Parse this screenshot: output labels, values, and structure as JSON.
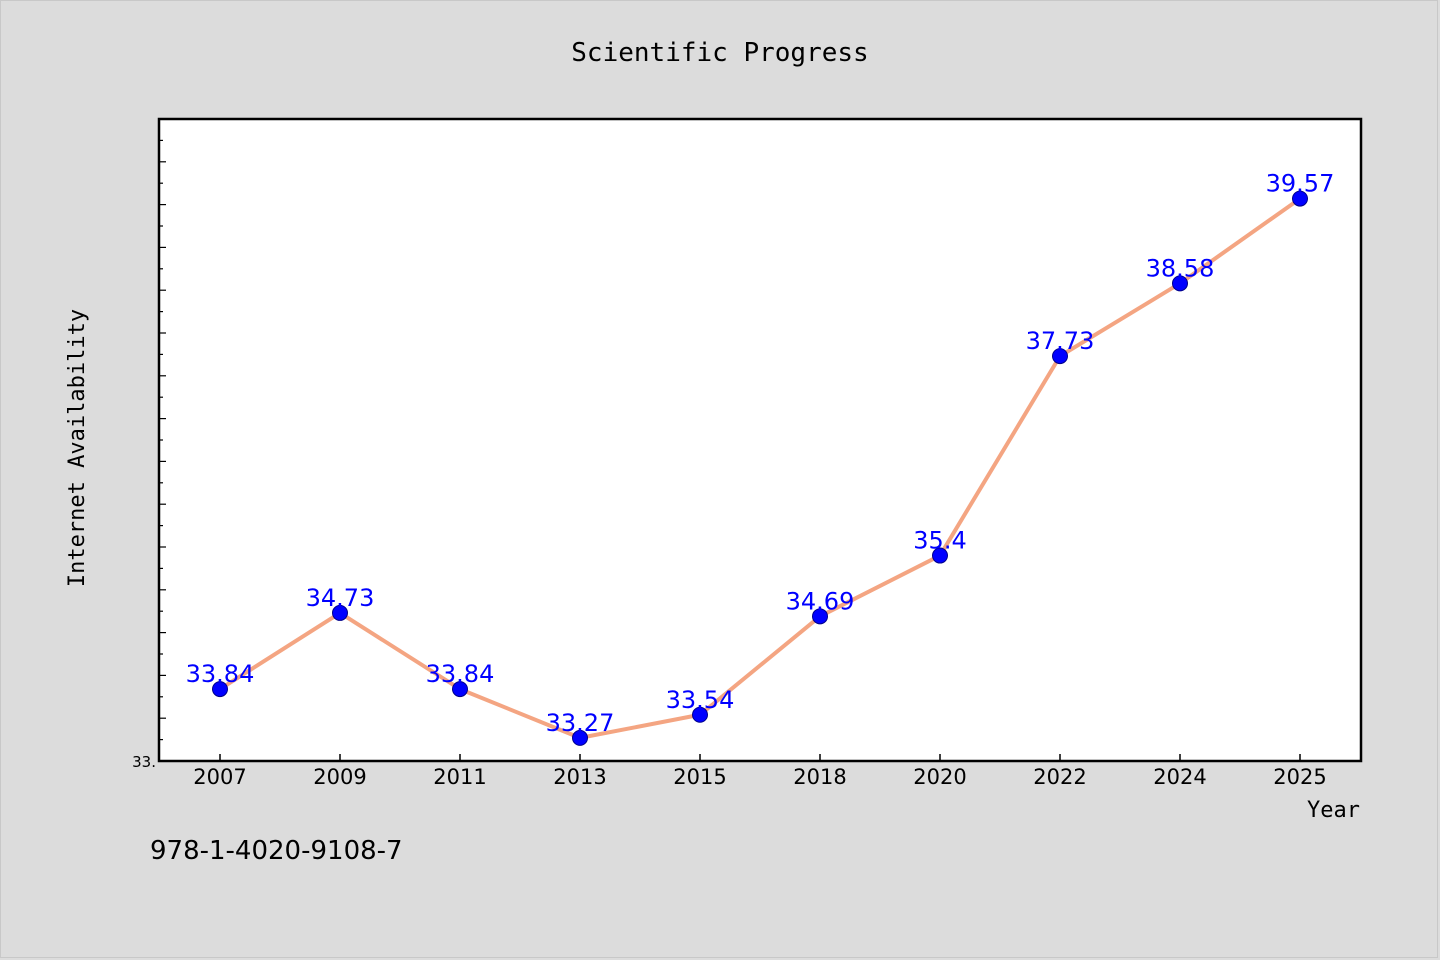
{
  "chart_data": {
    "type": "line",
    "title": "Scientific Progress",
    "xlabel": "Year",
    "ylabel": "Internet Availability",
    "categories": [
      "2007",
      "2009",
      "2011",
      "2013",
      "2015",
      "2018",
      "2020",
      "2022",
      "2024",
      "2025"
    ],
    "series": [
      {
        "values": [
          33.84,
          34.73,
          33.84,
          33.27,
          33.54,
          34.69,
          35.4,
          37.73,
          38.58,
          39.57
        ],
        "labels": [
          "33.84",
          "34.73",
          "33.84",
          "33.27",
          "33.54",
          "34.69",
          "35.4",
          "37.73",
          "38.58",
          "39.57"
        ]
      }
    ],
    "ylim": [
      33.0,
      40.5
    ],
    "y_tick_labels": [
      {
        "value": 33.0,
        "label": "33."
      }
    ],
    "y_minor_tick_step": 0.25,
    "y_major_tick_step": 0.5,
    "grid": false,
    "colors": {
      "line": "#f4a582",
      "marker": "#0000ff",
      "marker_edge": "#00008b",
      "data_label": "#0000ff",
      "plot_background": "#ffffff",
      "page_background": "#dcdcdc"
    }
  },
  "footer_text": "978-1-4020-9108-7"
}
